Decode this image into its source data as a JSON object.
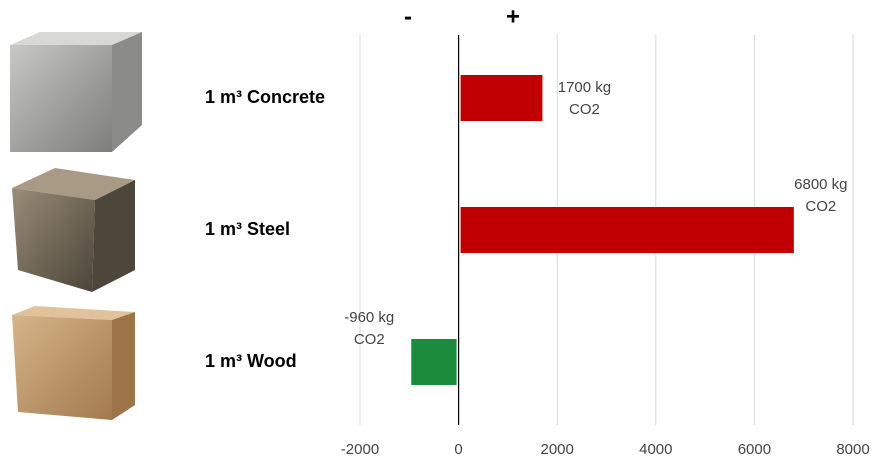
{
  "chart_data": {
    "type": "hbar",
    "annotations": [
      "-",
      "+"
    ],
    "categories": [
      "1 m³ Concrete",
      "1 m³ Steel",
      "1 m³ Wood"
    ],
    "values": [
      1700,
      6800,
      -960
    ],
    "value_labels": [
      [
        "1700 kg",
        "CO2"
      ],
      [
        "6800 kg",
        "CO2"
      ],
      [
        "-960 kg",
        "CO2"
      ]
    ],
    "colors": [
      "#c00000",
      "#c00000",
      "#1a8c3c"
    ],
    "xlim": [
      -2000,
      8000
    ],
    "xticks": [
      -2000,
      0,
      2000,
      4000,
      6000,
      8000
    ],
    "grid": true
  }
}
